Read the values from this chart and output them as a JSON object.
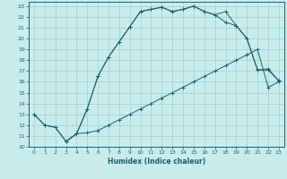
{
  "xlabel": "Humidex (Indice chaleur)",
  "bg_color": "#c8ecec",
  "grid_color": "#9dcfcf",
  "line_color": "#1a6060",
  "xlim": [
    -0.5,
    23.5
  ],
  "ylim": [
    10,
    23.4
  ],
  "x_ticks": [
    0,
    1,
    2,
    3,
    4,
    5,
    6,
    7,
    8,
    9,
    10,
    11,
    12,
    13,
    14,
    15,
    16,
    17,
    18,
    19,
    20,
    21,
    22,
    23
  ],
  "y_ticks": [
    10,
    11,
    12,
    13,
    14,
    15,
    16,
    17,
    18,
    19,
    20,
    21,
    22,
    23
  ],
  "curve1_x": [
    0,
    1,
    2,
    3,
    4,
    5,
    6,
    7,
    8,
    9,
    10,
    11,
    12,
    13,
    14,
    15,
    16,
    17,
    18,
    19,
    20,
    21,
    22,
    23
  ],
  "curve1_y": [
    13,
    12,
    11.8,
    10.5,
    11.2,
    13.5,
    16.5,
    18.3,
    19.7,
    21.1,
    22.5,
    22.7,
    22.9,
    22.5,
    22.7,
    23.0,
    22.5,
    22.2,
    22.5,
    21.2,
    20.0,
    17.1,
    17.1,
    16.1
  ],
  "curve2_x": [
    0,
    1,
    2,
    3,
    4,
    5,
    6,
    7,
    8,
    9,
    10,
    11,
    12,
    13,
    14,
    15,
    16,
    17,
    18,
    19,
    20,
    21,
    22,
    23
  ],
  "curve2_y": [
    13,
    12,
    11.8,
    10.5,
    11.2,
    11.3,
    11.5,
    12.0,
    12.5,
    13.0,
    13.5,
    14.0,
    14.5,
    15.0,
    15.5,
    16.0,
    16.5,
    17.0,
    17.5,
    18.0,
    18.5,
    19.0,
    15.5,
    16.0
  ],
  "curve3_x": [
    3,
    4,
    5,
    6,
    7,
    8,
    9,
    10,
    11,
    12,
    13,
    14,
    15,
    16,
    17,
    18,
    19,
    20,
    21,
    22,
    23
  ],
  "curve3_y": [
    10.5,
    11.2,
    13.5,
    16.5,
    18.3,
    19.7,
    21.1,
    22.5,
    22.7,
    22.9,
    22.5,
    22.7,
    23.0,
    22.5,
    22.2,
    21.5,
    21.2,
    20.0,
    17.1,
    17.2,
    16.1
  ]
}
